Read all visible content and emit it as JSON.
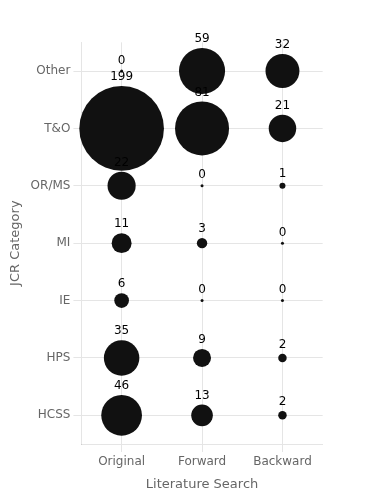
{
  "chart_data": {
    "type": "bubble",
    "categories": [
      "Original",
      "Forward",
      "Backward"
    ],
    "series": [
      {
        "name": "Other",
        "values": [
          0,
          59,
          32
        ]
      },
      {
        "name": "T&O",
        "values": [
          199,
          81,
          21
        ]
      },
      {
        "name": "OR/MS",
        "values": [
          22,
          0,
          1
        ]
      },
      {
        "name": "MI",
        "values": [
          11,
          3,
          0
        ]
      },
      {
        "name": "IE",
        "values": [
          6,
          0,
          0
        ]
      },
      {
        "name": "HPS",
        "values": [
          35,
          9,
          2
        ]
      },
      {
        "name": "HCSS",
        "values": [
          46,
          13,
          2
        ]
      }
    ],
    "color": "#111111",
    "xlabel": "Literature Search",
    "ylabel": "JCR Category",
    "grid": true,
    "data_labels": true
  }
}
